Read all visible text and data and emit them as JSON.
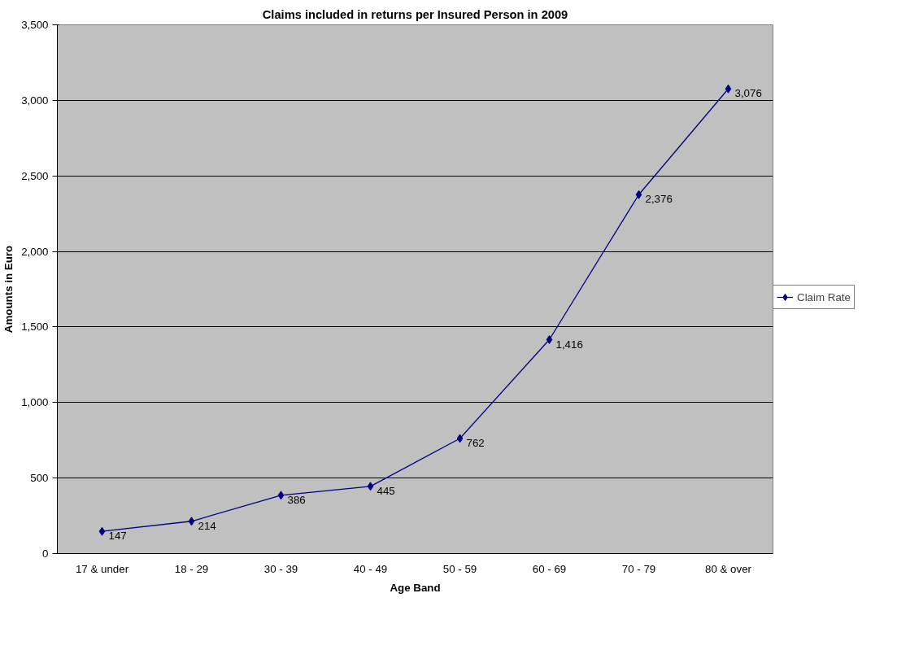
{
  "chart_data": {
    "type": "line",
    "title": "Claims included in returns per Insured Person in 2009",
    "xlabel": "Age Band",
    "ylabel": "Amounts in Euro",
    "categories": [
      "17 & under",
      "18 - 29",
      "30 - 39",
      "40 - 49",
      "50 - 59",
      "60 - 69",
      "70 - 79",
      "80 & over"
    ],
    "series": [
      {
        "name": "Claim Rate",
        "color": "#000080",
        "values": [
          147,
          214,
          386,
          445,
          762,
          1416,
          2376,
          3076
        ]
      }
    ],
    "ylim": [
      0,
      3500
    ],
    "yticks": [
      0,
      500,
      {
        "value": 1000,
        "label": "1,000"
      },
      {
        "value": 1500,
        "label": "1,500"
      },
      {
        "value": 2000,
        "label": "2,000"
      },
      {
        "value": 2500,
        "label": "2,500"
      },
      {
        "value": 3000,
        "label": "3,000"
      },
      {
        "value": 3500,
        "label": "3,500"
      }
    ],
    "value_labels": [
      "147",
      "214",
      "386",
      "445",
      "762",
      "1,416",
      "2,376",
      "3,076"
    ],
    "grid": "y",
    "legend": "right",
    "marker": "diamond",
    "line_style": "solid"
  }
}
